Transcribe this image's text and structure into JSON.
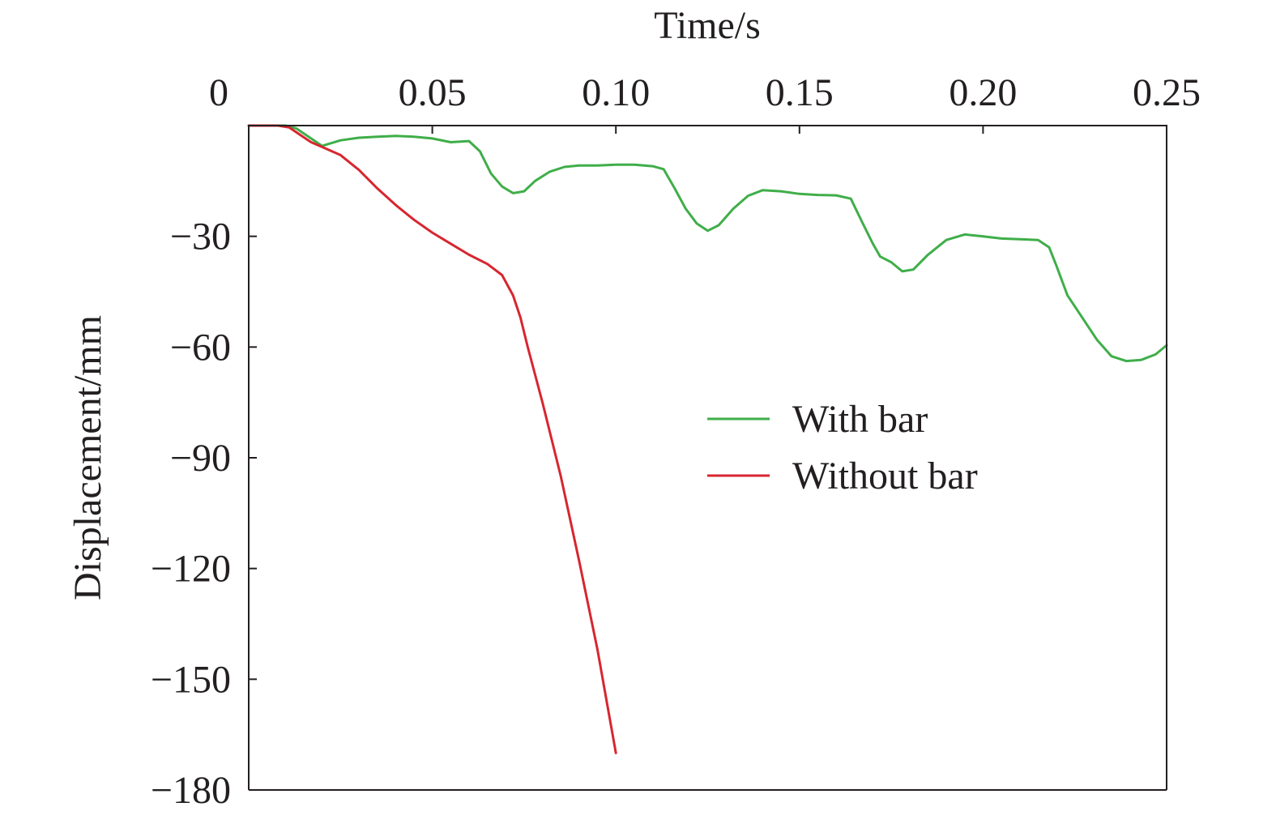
{
  "chart_data": {
    "type": "line",
    "title": "",
    "xlabel": "Time/s",
    "ylabel": "Displacement/mm",
    "xlim": [
      0,
      0.25
    ],
    "ylim": [
      -180,
      0
    ],
    "x_axis_position": "top",
    "grid": false,
    "legend_position": "center-right",
    "x_ticks": [
      {
        "value": 0,
        "label": "0"
      },
      {
        "value": 0.05,
        "label": "0.05"
      },
      {
        "value": 0.1,
        "label": "0.10"
      },
      {
        "value": 0.15,
        "label": "0.15"
      },
      {
        "value": 0.2,
        "label": "0.20"
      },
      {
        "value": 0.25,
        "label": "0.25"
      }
    ],
    "y_ticks": [
      {
        "value": -30,
        "label": "−30"
      },
      {
        "value": -60,
        "label": "−60"
      },
      {
        "value": -90,
        "label": "−90"
      },
      {
        "value": -120,
        "label": "−120"
      },
      {
        "value": -150,
        "label": "−150"
      },
      {
        "value": -180,
        "label": "−180"
      }
    ],
    "series": [
      {
        "name": "With bar",
        "color": "#3fae49",
        "points": [
          [
            0.0,
            0.0
          ],
          [
            0.01,
            0.0
          ],
          [
            0.013,
            -0.8
          ],
          [
            0.017,
            -3.5
          ],
          [
            0.02,
            -5.5
          ],
          [
            0.025,
            -4.0
          ],
          [
            0.03,
            -3.3
          ],
          [
            0.035,
            -3.0
          ],
          [
            0.04,
            -2.8
          ],
          [
            0.045,
            -3.0
          ],
          [
            0.05,
            -3.5
          ],
          [
            0.055,
            -4.5
          ],
          [
            0.06,
            -4.2
          ],
          [
            0.063,
            -7.0
          ],
          [
            0.066,
            -13.0
          ],
          [
            0.069,
            -16.5
          ],
          [
            0.072,
            -18.3
          ],
          [
            0.075,
            -17.8
          ],
          [
            0.078,
            -15.0
          ],
          [
            0.082,
            -12.5
          ],
          [
            0.086,
            -11.2
          ],
          [
            0.09,
            -10.8
          ],
          [
            0.095,
            -10.8
          ],
          [
            0.1,
            -10.6
          ],
          [
            0.105,
            -10.6
          ],
          [
            0.11,
            -11.0
          ],
          [
            0.113,
            -11.8
          ],
          [
            0.116,
            -17.0
          ],
          [
            0.119,
            -22.5
          ],
          [
            0.122,
            -26.5
          ],
          [
            0.125,
            -28.5
          ],
          [
            0.128,
            -27.0
          ],
          [
            0.132,
            -22.5
          ],
          [
            0.136,
            -19.0
          ],
          [
            0.14,
            -17.5
          ],
          [
            0.145,
            -17.8
          ],
          [
            0.15,
            -18.5
          ],
          [
            0.155,
            -18.8
          ],
          [
            0.16,
            -18.9
          ],
          [
            0.164,
            -19.8
          ],
          [
            0.167,
            -26.0
          ],
          [
            0.17,
            -32.0
          ],
          [
            0.172,
            -35.5
          ],
          [
            0.175,
            -37.0
          ],
          [
            0.178,
            -39.5
          ],
          [
            0.181,
            -39.0
          ],
          [
            0.185,
            -35.0
          ],
          [
            0.19,
            -31.0
          ],
          [
            0.195,
            -29.5
          ],
          [
            0.2,
            -30.0
          ],
          [
            0.205,
            -30.6
          ],
          [
            0.21,
            -30.8
          ],
          [
            0.215,
            -31.0
          ],
          [
            0.218,
            -33.0
          ],
          [
            0.22,
            -38.0
          ],
          [
            0.223,
            -46.0
          ],
          [
            0.227,
            -52.0
          ],
          [
            0.231,
            -58.0
          ],
          [
            0.235,
            -62.5
          ],
          [
            0.239,
            -63.8
          ],
          [
            0.243,
            -63.5
          ],
          [
            0.247,
            -62.0
          ],
          [
            0.25,
            -59.5
          ]
        ]
      },
      {
        "name": "Without bar",
        "color": "#d7262f",
        "points": [
          [
            0.0,
            0.0
          ],
          [
            0.008,
            0.0
          ],
          [
            0.011,
            -0.5
          ],
          [
            0.014,
            -2.5
          ],
          [
            0.017,
            -4.5
          ],
          [
            0.02,
            -5.8
          ],
          [
            0.025,
            -8.0
          ],
          [
            0.03,
            -12.0
          ],
          [
            0.035,
            -17.0
          ],
          [
            0.04,
            -21.5
          ],
          [
            0.045,
            -25.5
          ],
          [
            0.05,
            -29.0
          ],
          [
            0.055,
            -32.0
          ],
          [
            0.06,
            -35.0
          ],
          [
            0.065,
            -37.5
          ],
          [
            0.069,
            -40.5
          ],
          [
            0.072,
            -46.0
          ],
          [
            0.074,
            -52.0
          ],
          [
            0.076,
            -60.0
          ],
          [
            0.08,
            -75.0
          ],
          [
            0.085,
            -95.0
          ],
          [
            0.09,
            -118.0
          ],
          [
            0.095,
            -142.0
          ],
          [
            0.1,
            -170.0
          ]
        ]
      }
    ]
  }
}
